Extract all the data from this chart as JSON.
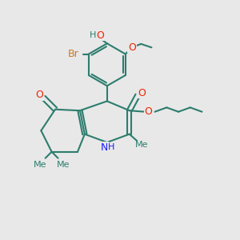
{
  "background_color": "#e8e8e8",
  "bond_color": "#2d7d6e",
  "bond_width": 1.5,
  "N_color": "#1a1aff",
  "O_color": "#ee2200",
  "Br_color": "#cc7722",
  "font_size": 9,
  "figsize": [
    3.0,
    3.0
  ],
  "dpi": 100,
  "xlim": [
    0,
    10
  ],
  "ylim": [
    0,
    10
  ]
}
